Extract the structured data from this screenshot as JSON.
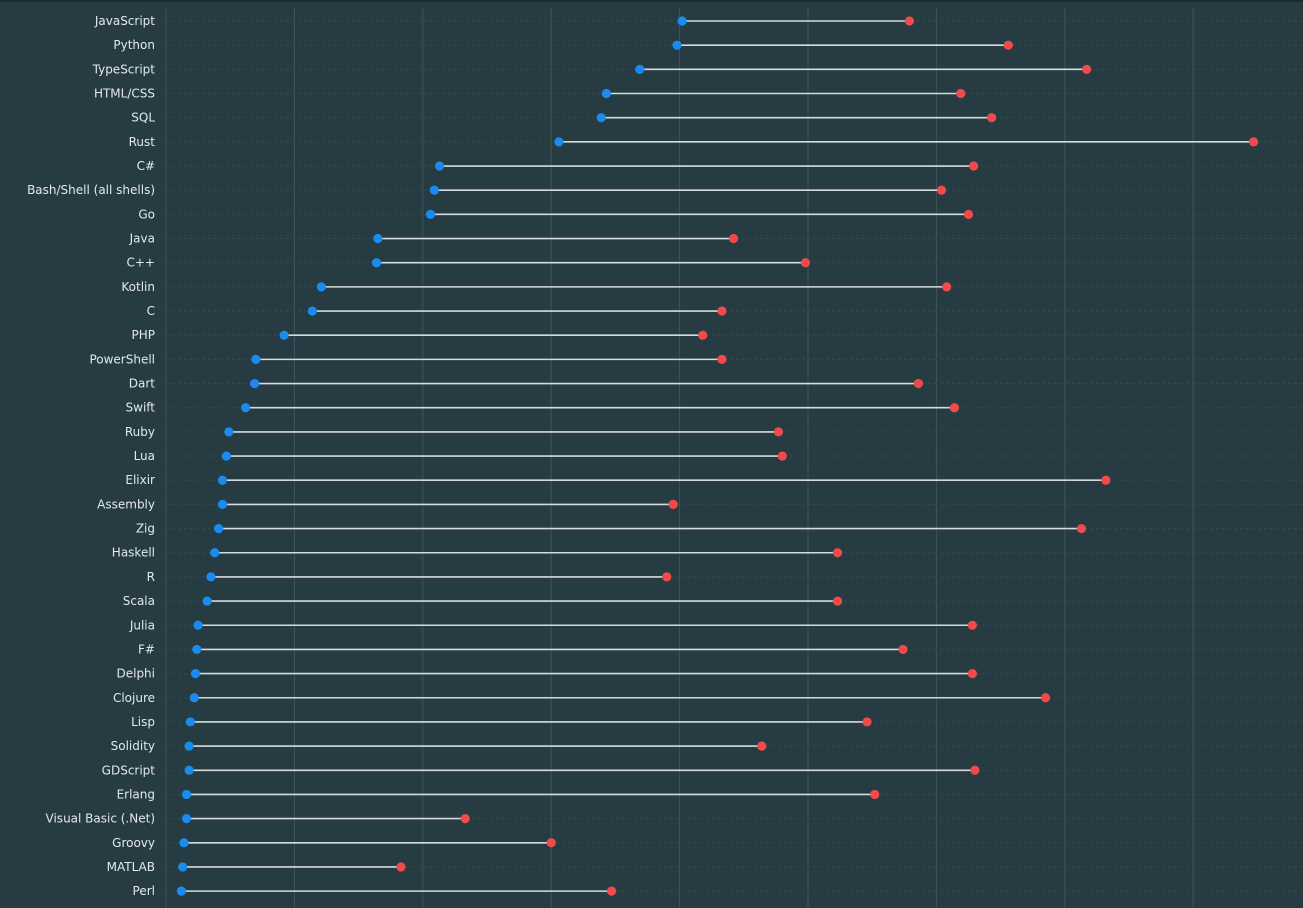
{
  "chart_data": {
    "type": "dumbbell",
    "title": "",
    "xlabel": "",
    "ylabel": "",
    "xlim": [
      0,
      87
    ],
    "grid": true,
    "series": [
      {
        "name": "start",
        "color": "#1a8cf0"
      },
      {
        "name": "end",
        "color": "#f04a4a"
      }
    ],
    "categories": [
      "JavaScript",
      "Python",
      "TypeScript",
      "HTML/CSS",
      "SQL",
      "Rust",
      "C#",
      "Bash/Shell (all shells)",
      "Go",
      "Java",
      "C++",
      "Kotlin",
      "C",
      "PHP",
      "PowerShell",
      "Dart",
      "Swift",
      "Ruby",
      "Lua",
      "Elixir",
      "Assembly",
      "Zig",
      "Haskell",
      "R",
      "Scala",
      "Julia",
      "F#",
      "Delphi",
      "Clojure",
      "Lisp",
      "Solidity",
      "GDScript",
      "Erlang",
      "Visual Basic (.Net)",
      "Groovy",
      "MATLAB",
      "Perl"
    ],
    "start": [
      40.2,
      39.8,
      36.9,
      34.3,
      33.9,
      30.6,
      21.3,
      20.9,
      20.6,
      16.5,
      16.4,
      12.1,
      11.4,
      9.2,
      7.0,
      6.9,
      6.2,
      4.9,
      4.7,
      4.4,
      4.4,
      4.1,
      3.8,
      3.5,
      3.2,
      2.5,
      2.4,
      2.3,
      2.2,
      1.9,
      1.8,
      1.8,
      1.6,
      1.6,
      1.4,
      1.3,
      1.2
    ],
    "end": [
      57.9,
      65.6,
      71.7,
      61.9,
      64.3,
      84.7,
      62.9,
      60.4,
      62.5,
      44.2,
      49.8,
      60.8,
      43.3,
      41.8,
      43.3,
      58.6,
      61.4,
      47.7,
      48.0,
      73.2,
      39.5,
      71.3,
      52.3,
      39.0,
      52.3,
      62.8,
      57.4,
      62.8,
      68.5,
      54.6,
      46.4,
      63.0,
      55.2,
      23.3,
      30.0,
      18.3,
      34.7
    ]
  }
}
